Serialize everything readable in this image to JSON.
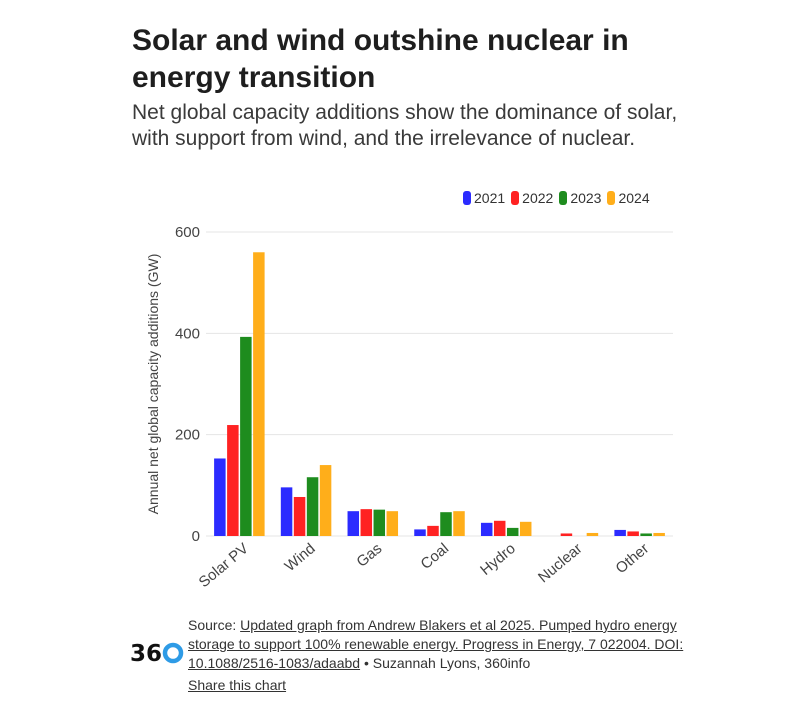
{
  "title": "Solar and wind outshine nuclear in energy transition",
  "subtitle": "Net global capacity additions show the dominance of solar, with support from wind, and the irrelevance of nuclear.",
  "logo_text": "36",
  "source": {
    "prefix": "Source: ",
    "link_text": "Updated graph from Andrew Blakers et al 2025. Pumped hydro energy storage to support 100% renewable energy. Progress in Energy, 7 022004. DOI: 10.1088/2516-1083/adaabd",
    "suffix": " • Suzannah Lyons, 360info",
    "share_label": "Share this chart"
  },
  "colors": {
    "2021": "#2b2bff",
    "2022": "#ff2222",
    "2023": "#1e8c1e",
    "2024": "#ffae1a",
    "grid": "#e4e4e4",
    "logo_accent": "#2e9be6"
  },
  "chart_data": {
    "type": "bar",
    "categories": [
      "Solar PV",
      "Wind",
      "Gas",
      "Coal",
      "Hydro",
      "Nuclear",
      "Other"
    ],
    "series": [
      {
        "name": "2021",
        "values": [
          153,
          96,
          49,
          13,
          26,
          0,
          12
        ]
      },
      {
        "name": "2022",
        "values": [
          219,
          77,
          53,
          20,
          30,
          5,
          9
        ]
      },
      {
        "name": "2023",
        "values": [
          393,
          116,
          52,
          47,
          16,
          0,
          5
        ]
      },
      {
        "name": "2024",
        "values": [
          560,
          140,
          49,
          49,
          28,
          6,
          6
        ]
      }
    ],
    "ylabel": "Annual net global capacity additions (GW)",
    "xlabel": "",
    "ylim": [
      0,
      600
    ],
    "yticks": [
      0,
      200,
      400,
      600
    ],
    "grid": true,
    "legend": "top-right"
  }
}
